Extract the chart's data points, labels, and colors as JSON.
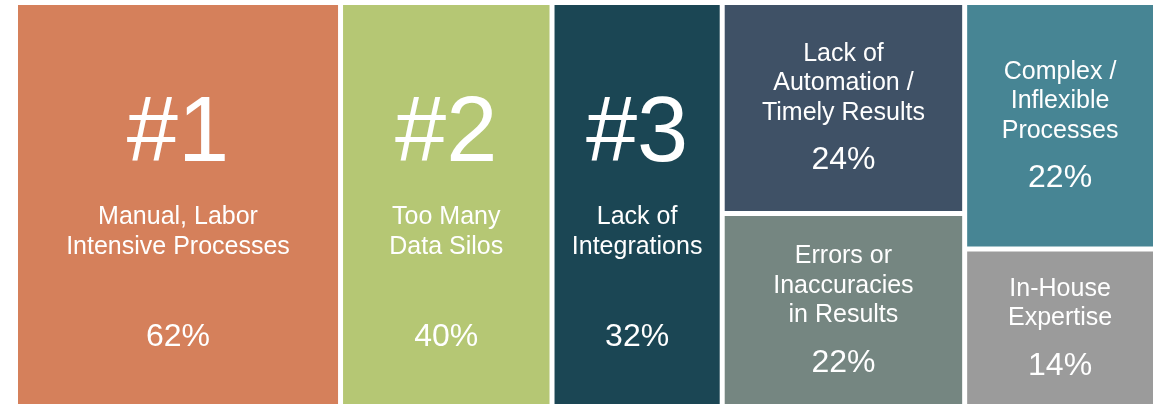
{
  "chart_data": {
    "type": "other",
    "categories": [
      "Manual, Labor Intensive Processes",
      "Too Many Data Silos",
      "Lack of Integrations",
      "Lack of Automation / Timely Results",
      "Errors or Inaccuracies in Results",
      "Complex / Inflexible Processes",
      "In-House Expertise"
    ],
    "values": [
      62,
      40,
      32,
      24,
      22,
      22,
      14
    ],
    "value_labels": [
      "62%",
      "40%",
      "32%",
      "24%",
      "22%",
      "22%",
      "14%"
    ],
    "colors": [
      "#d5805b",
      "#b5c774",
      "#1b4654",
      "#3f5166",
      "#758681",
      "#478594",
      "#9b9b9b"
    ],
    "annotations": [
      "#1",
      "#2",
      "#3"
    ]
  }
}
